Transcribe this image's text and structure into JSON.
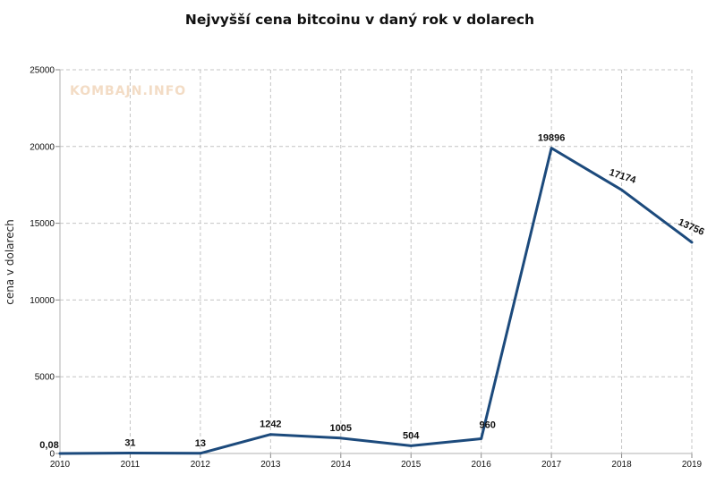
{
  "chart_data": {
    "type": "line",
    "title": "Nejvyšší cena bitcoinu v daný rok v dolarech",
    "xlabel": "",
    "ylabel": "cena v dolarech",
    "watermark": "KOMBAJN.INFO",
    "categories": [
      "2010",
      "2011",
      "2012",
      "2013",
      "2014",
      "2015",
      "2016",
      "2017",
      "2018",
      "2019"
    ],
    "series": [
      {
        "values": [
          0.08,
          31,
          13,
          1242,
          1005,
          504,
          960,
          19896,
          17174,
          13756
        ],
        "labels": [
          "0,08",
          "31",
          "13",
          "1242",
          "1005",
          "504",
          "960",
          "19896",
          "17174",
          "13756"
        ],
        "color": "#1c4a7c"
      }
    ],
    "ylim": [
      0,
      25000
    ],
    "yticks": [
      0,
      5000,
      10000,
      15000,
      20000,
      25000
    ],
    "grid": true,
    "legend": "none"
  }
}
